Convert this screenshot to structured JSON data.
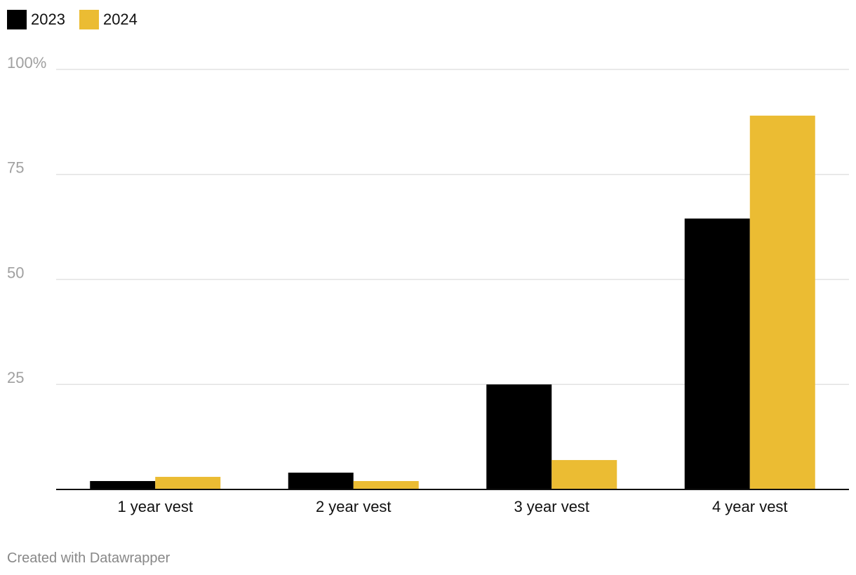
{
  "chart_data": {
    "type": "bar",
    "title": "",
    "xlabel": "",
    "ylabel": "",
    "categories": [
      "1 year vest",
      "2 year vest",
      "3 year vest",
      "4 year vest"
    ],
    "series": [
      {
        "name": "2023",
        "color": "#000000",
        "values": [
          2,
          4,
          25,
          64.5
        ]
      },
      {
        "name": "2024",
        "color": "#ebbc33",
        "values": [
          3,
          2,
          7,
          89
        ]
      }
    ],
    "ylim": [
      0,
      100
    ],
    "yticks": [
      {
        "value": 100,
        "label": "100%"
      },
      {
        "value": 75,
        "label": "75"
      },
      {
        "value": 50,
        "label": "50"
      },
      {
        "value": 25,
        "label": "25"
      }
    ],
    "grid": true,
    "legend_position": "top-left"
  },
  "footer": {
    "credit": "Created with Datawrapper"
  }
}
